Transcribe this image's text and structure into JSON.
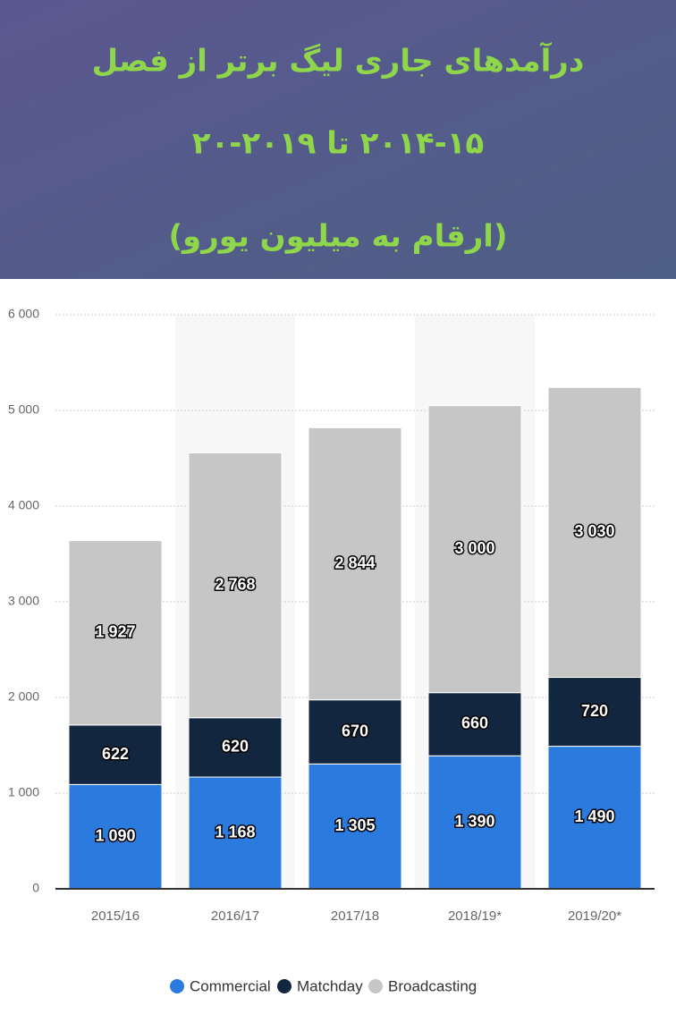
{
  "chart_data": {
    "type": "stacked_bar",
    "title": [
      "درآمدهای جاری لیگ برتر از فصل",
      "۲۰۱۴-۱۵ تا ۲۰۱۹-۲۰",
      "(ارقام به میلیون یورو)"
    ],
    "categories": [
      "2015/16",
      "2016/17",
      "2017/18",
      "2018/19*",
      "2019/20*"
    ],
    "series": [
      {
        "name": "Commercial",
        "color": "#2b7bdf",
        "values": [
          1090,
          1168,
          1305,
          1390,
          1490
        ],
        "value_labels": [
          "1 090",
          "1 168",
          "1 305",
          "1 390",
          "1 490"
        ]
      },
      {
        "name": "Matchday",
        "color": "#12263f",
        "values": [
          622,
          620,
          670,
          660,
          720
        ]
      },
      {
        "name": "Broadcasting",
        "color": "#c6c6c6",
        "values": [
          1927,
          2768,
          2844,
          3000,
          3030
        ],
        "value_labels": [
          "1 927",
          "2 768",
          "2 844",
          "3 000",
          "3 030"
        ]
      }
    ],
    "ylim": [
      0,
      6000
    ],
    "yticks": [
      0,
      {
        "value": 1000,
        "label": "1 000"
      },
      {
        "value": 2000,
        "label": "2 000"
      },
      {
        "value": 3000,
        "label": "3 000"
      },
      {
        "value": 4000,
        "label": "4 000"
      },
      {
        "value": 5000,
        "label": "5 000"
      },
      {
        "value": 6000,
        "label": "6 000"
      }
    ],
    "grid": true
  }
}
